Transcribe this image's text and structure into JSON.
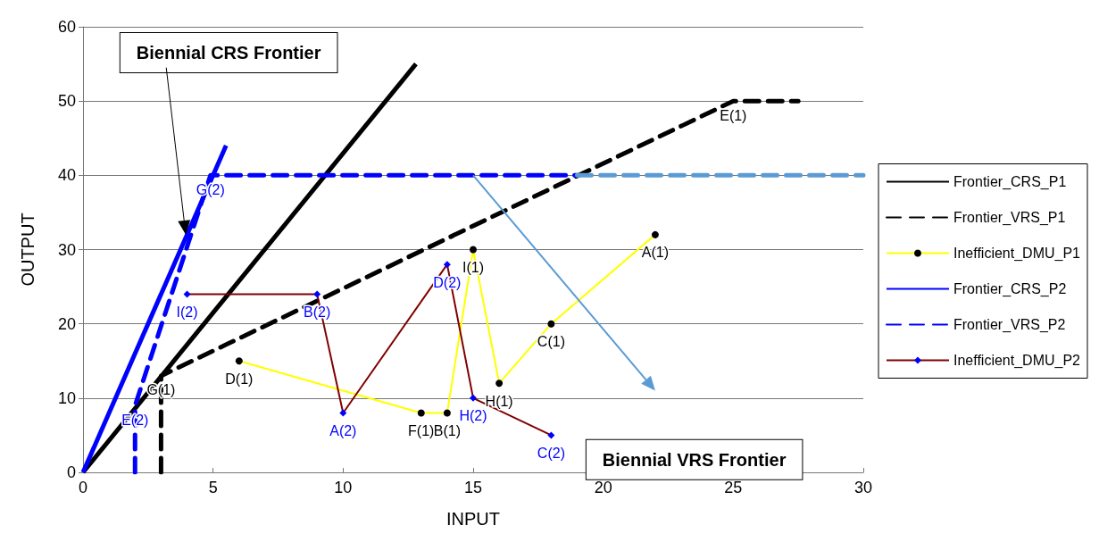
{
  "chart_data": {
    "type": "line",
    "xlabel": "INPUT",
    "ylabel": "OUTPUT",
    "xlim": [
      0,
      30
    ],
    "ylim": [
      0,
      60
    ],
    "xticks": [
      0,
      5,
      10,
      15,
      20,
      25,
      30
    ],
    "yticks": [
      0,
      10,
      20,
      30,
      40,
      50,
      60
    ],
    "grid": "y",
    "legend": "right",
    "annotations": [
      "Biennial CRS Frontier",
      "Biennial VRS Frontier"
    ],
    "series": [
      {
        "name": "Frontier_CRS_P1",
        "color": "#000000",
        "x": [
          0,
          12.8
        ],
        "values": [
          0,
          55
        ],
        "marker": "none",
        "line_style": "solid"
      },
      {
        "name": "Frontier_VRS_P1",
        "color": "#000000",
        "x": [
          3,
          3,
          25,
          27.5
        ],
        "values": [
          0,
          13,
          50,
          50
        ],
        "marker": "none",
        "line_style": "dashed",
        "value_labels": [
          null,
          "G(1)",
          "E(1)",
          null
        ]
      },
      {
        "name": "Inefficient_DMU_P1",
        "color": "#ffff00",
        "colors": [
          "#000000",
          "#000000",
          "#000000",
          "#000000",
          "#000000",
          "#000000",
          "#000000"
        ],
        "x": [
          6,
          13,
          14,
          15,
          16,
          18,
          22
        ],
        "values": [
          15,
          8,
          8,
          30,
          12,
          20,
          32
        ],
        "marker": "circle",
        "line_style": "solid",
        "value_labels": [
          "D(1)",
          "F(1)",
          "B(1)",
          "I(1)",
          "H(1)",
          "C(1)",
          "A(1)"
        ]
      },
      {
        "name": "Frontier_CRS_P2",
        "color": "#0000ff",
        "x": [
          0,
          5.5
        ],
        "values": [
          0,
          44
        ],
        "marker": "none",
        "line_style": "solid"
      },
      {
        "name": "Frontier_VRS_P2",
        "color": "#0000ff",
        "x": [
          2,
          2,
          4.9,
          19
        ],
        "values": [
          0,
          9,
          40,
          40
        ],
        "marker": "none",
        "line_style": "dashed",
        "value_labels": [
          null,
          "E(2)",
          "G(2)",
          null
        ]
      },
      {
        "color": "#5b9bd5",
        "x": [
          19,
          30
        ],
        "values": [
          40,
          40
        ],
        "marker": "none",
        "line_style": "dashed"
      },
      {
        "name": "Inefficient_DMU_P2",
        "color": "#800000",
        "colors": [
          "#0000ff",
          "#0000ff",
          "#0000ff",
          "#0000ff",
          "#0000ff",
          "#0000ff"
        ],
        "x": [
          4,
          9,
          10,
          14,
          15,
          18
        ],
        "values": [
          24,
          24,
          8,
          28,
          10,
          5
        ],
        "marker": "diamond",
        "line_style": "solid",
        "value_labels": [
          "I(2)",
          "B(2)",
          "A(2)",
          "D(2)",
          "H(2)",
          "C(2)"
        ]
      }
    ]
  }
}
